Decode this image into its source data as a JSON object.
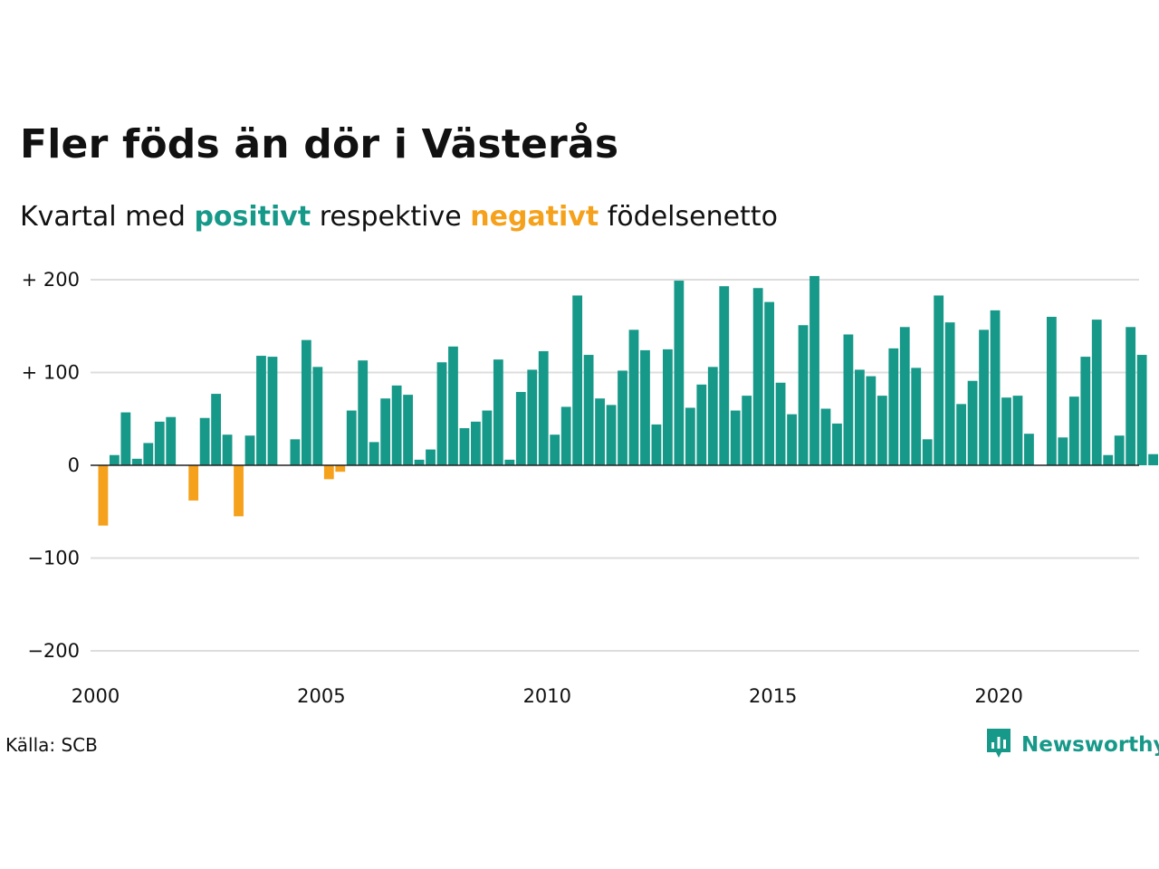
{
  "header": {
    "title": "Fler föds än dör i Västerås",
    "subtitle_prefix": "Kvartal med",
    "subtitle_positive": "positivt",
    "subtitle_middle": "respektive",
    "subtitle_negative": "negativt",
    "subtitle_suffix": "födelsenetto"
  },
  "source": "Källa: SCB",
  "brand": {
    "name": "Newsworthy",
    "icon": "newsworthy-logo-icon"
  },
  "colors": {
    "positive": "#17998a",
    "negative": "#f5a11c",
    "grid": "#dddddd",
    "text": "#111111"
  },
  "chart_data": {
    "type": "bar",
    "title": "Fler föds än dör i Västerås",
    "subtitle": "Kvartal med positivt respektive negativt födelsenetto",
    "xlabel": "",
    "ylabel": "",
    "start_year": 2000,
    "start_quarter": 1,
    "x_ticks": [
      "2000",
      "2005",
      "2010",
      "2015",
      "2020"
    ],
    "y_ticks": [
      {
        "value": 200,
        "label": "+ 200"
      },
      {
        "value": 100,
        "label": "+ 100"
      },
      {
        "value": 0,
        "label": "0"
      },
      {
        "value": -100,
        "label": "−100"
      },
      {
        "value": -200,
        "label": "−200"
      }
    ],
    "ylim": [
      -200,
      200
    ],
    "grid": true,
    "values": [
      -65,
      11,
      57,
      7,
      24,
      47,
      52,
      0,
      -38,
      51,
      77,
      33,
      -55,
      32,
      118,
      117,
      0,
      28,
      135,
      106,
      -15,
      -7,
      59,
      113,
      25,
      72,
      86,
      76,
      6,
      17,
      111,
      128,
      40,
      47,
      59,
      114,
      6,
      79,
      103,
      123,
      33,
      63,
      183,
      119,
      72,
      65,
      102,
      146,
      124,
      44,
      125,
      199,
      62,
      87,
      106,
      193,
      59,
      75,
      191,
      176,
      89,
      55,
      151,
      204,
      61,
      45,
      141,
      103,
      96,
      75,
      126,
      149,
      105,
      28,
      183,
      154,
      66,
      91,
      146,
      167,
      73,
      75,
      34,
      0,
      160,
      30,
      74,
      117,
      157,
      11,
      32,
      149,
      119,
      12
    ]
  }
}
